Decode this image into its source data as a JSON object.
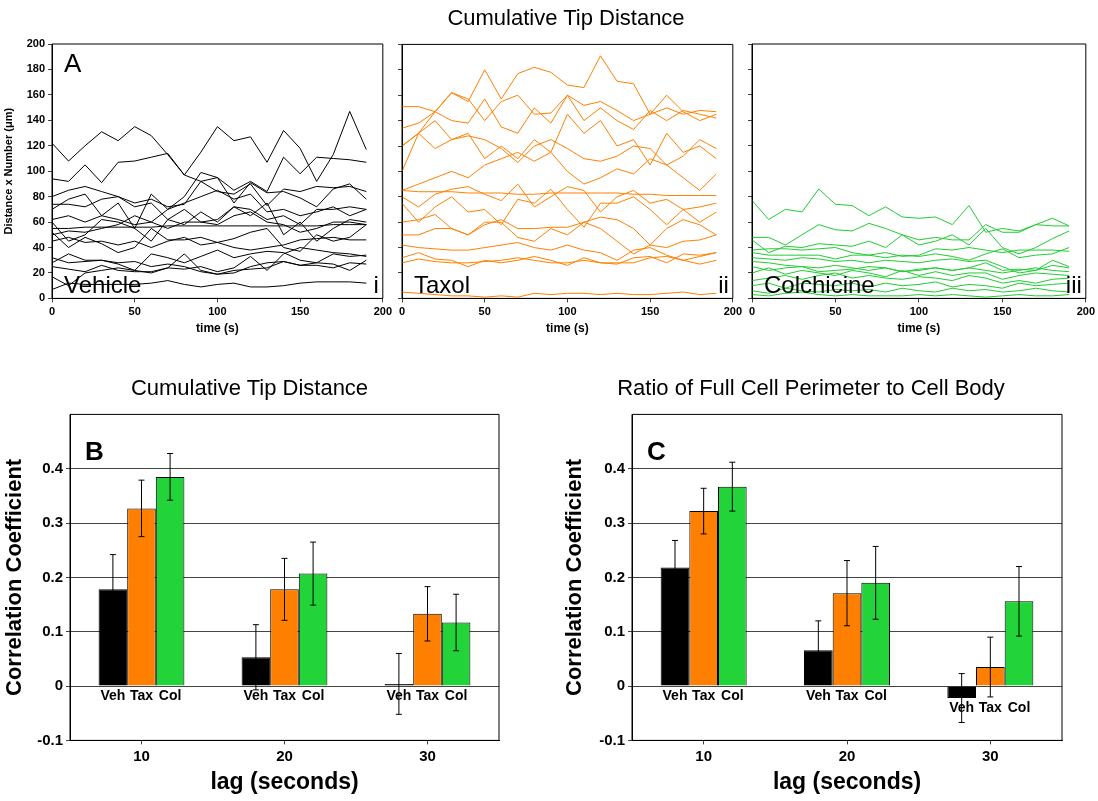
{
  "chart_data": [
    {
      "type": "line",
      "xlabel": "time (s)",
      "ylabel": "Distance x Number (μm)",
      "color": "#000000",
      "x": [
        0,
        10,
        20,
        30,
        40,
        50,
        60,
        70,
        80,
        90,
        100,
        110,
        120,
        130,
        140,
        150,
        160,
        170,
        180,
        190
      ],
      "xlim": [
        0,
        200
      ],
      "xticks": [
        0,
        50,
        100,
        150,
        200
      ],
      "ylim": [
        0,
        200
      ],
      "yticks": [
        0,
        20,
        40,
        60,
        80,
        100,
        120,
        140,
        160,
        180,
        200
      ],
      "annotations": [
        "A",
        "Vehicle",
        "i"
      ],
      "series": [
        {
          "values": [
            122,
            108,
            120,
            131,
            124,
            135,
            128,
            113,
            97,
            115,
            135,
            124,
            127,
            107,
            132,
            118,
            92,
            113,
            147,
            117
          ]
        },
        {
          "values": [
            94,
            92,
            105,
            91,
            107,
            108,
            111,
            114,
            97,
            92,
            95,
            85,
            92,
            84,
            111,
            98,
            111,
            110,
            109,
            107
          ]
        },
        {
          "values": [
            55,
            55,
            56,
            56,
            56,
            56,
            56,
            57,
            57,
            57,
            57,
            57,
            57,
            57,
            57,
            57,
            57,
            58,
            58,
            58
          ]
        },
        {
          "values": [
            7,
            12,
            11,
            11,
            11,
            11,
            12,
            14,
            11,
            9,
            11,
            12,
            9,
            9,
            10,
            12,
            13,
            13,
            13,
            12
          ]
        },
        {
          "values": [
            25,
            23,
            21,
            26,
            22,
            21,
            21,
            24,
            35,
            22,
            19,
            22,
            23,
            24,
            29,
            26,
            28,
            27,
            22,
            30
          ]
        },
        {
          "values": [
            32,
            28,
            29,
            30,
            27,
            22,
            20,
            24,
            23,
            25,
            21,
            24,
            33,
            22,
            35,
            40,
            38,
            36,
            35,
            33
          ]
        },
        {
          "values": [
            80,
            85,
            88,
            84,
            80,
            75,
            78,
            72,
            74,
            92,
            84,
            82,
            90,
            73,
            86,
            84,
            88,
            87,
            88,
            84
          ]
        },
        {
          "values": [
            70,
            78,
            82,
            65,
            75,
            55,
            82,
            70,
            80,
            99,
            95,
            75,
            91,
            83,
            84,
            79,
            72,
            86,
            90,
            78
          ]
        },
        {
          "values": [
            60,
            45,
            50,
            62,
            60,
            55,
            45,
            62,
            70,
            60,
            62,
            72,
            65,
            75,
            50,
            60,
            45,
            55,
            62,
            60
          ]
        },
        {
          "values": [
            52,
            40,
            48,
            43,
            36,
            40,
            55,
            46,
            46,
            48,
            44,
            47,
            52,
            55,
            40,
            37,
            50,
            45,
            48,
            58
          ]
        },
        {
          "values": [
            74,
            74,
            72,
            78,
            80,
            72,
            75,
            62,
            58,
            68,
            60,
            72,
            70,
            62,
            65,
            58,
            70,
            70,
            72,
            70
          ]
        },
        {
          "values": [
            45,
            48,
            44,
            45,
            42,
            45,
            40,
            45,
            48,
            42,
            44,
            40,
            38,
            40,
            42,
            46,
            47,
            48,
            46,
            46
          ]
        },
        {
          "values": [
            62,
            65,
            60,
            65,
            62,
            58,
            60,
            55,
            60,
            60,
            58,
            65,
            68,
            60,
            58,
            52,
            55,
            60,
            60,
            58
          ]
        },
        {
          "values": [
            28,
            35,
            30,
            30,
            28,
            29,
            25,
            27,
            25,
            21,
            19,
            20,
            25,
            28,
            29,
            26,
            26,
            24,
            28,
            27
          ]
        },
        {
          "values": [
            17,
            10,
            20,
            22,
            24,
            22,
            35,
            32,
            28,
            33,
            38,
            32,
            35,
            37,
            36,
            30,
            28,
            35,
            33,
            34
          ]
        },
        {
          "values": [
            50,
            53,
            52,
            55,
            58,
            65,
            60,
            70,
            75,
            80,
            85,
            78,
            82,
            68,
            70,
            65,
            68,
            72,
            65,
            70
          ]
        }
      ]
    },
    {
      "type": "line",
      "title": "Cumulative Tip Distance",
      "xlabel": "time (s)",
      "tick_labels": "x",
      "color": "#ff8000",
      "x": [
        0,
        10,
        20,
        30,
        40,
        50,
        60,
        70,
        80,
        90,
        100,
        110,
        120,
        130,
        140,
        150,
        160,
        170,
        180,
        190
      ],
      "xlim": [
        0,
        200
      ],
      "xticks": [
        0,
        50,
        100,
        150,
        200
      ],
      "ylim": [
        0,
        200
      ],
      "yticks": [
        0,
        20,
        40,
        60,
        80,
        100,
        120,
        140,
        160,
        180,
        200
      ],
      "annotations": [
        "Taxol",
        "ii"
      ],
      "series": [
        {
          "values": [
            134,
            138,
            147,
            162,
            155,
            180,
            157,
            177,
            182,
            178,
            168,
            166,
            191,
            171,
            169,
            145,
            160,
            147,
            140,
            145
          ]
        },
        {
          "values": [
            151,
            151,
            147,
            140,
            138,
            157,
            135,
            130,
            150,
            138,
            160,
            152,
            155,
            148,
            140,
            145,
            150,
            145,
            148,
            147
          ]
        },
        {
          "values": [
            120,
            130,
            147,
            162,
            157,
            140,
            155,
            160,
            145,
            146,
            160,
            140,
            150,
            140,
            133,
            148,
            140,
            148,
            145,
            142
          ]
        },
        {
          "values": [
            120,
            130,
            140,
            125,
            130,
            110,
            120,
            110,
            125,
            115,
            145,
            130,
            140,
            120,
            125,
            105,
            130,
            115,
            120,
            110
          ]
        },
        {
          "values": [
            100,
            130,
            118,
            125,
            128,
            125,
            118,
            107,
            120,
            125,
            118,
            110,
            108,
            112,
            120,
            118,
            105,
            112,
            125,
            118
          ]
        },
        {
          "values": [
            85,
            90,
            95,
            100,
            95,
            105,
            110,
            115,
            108,
            115,
            100,
            90,
            95,
            102,
            98,
            110,
            105,
            95,
            85,
            98
          ]
        },
        {
          "values": [
            85,
            84,
            84,
            84,
            83,
            83,
            83,
            82,
            82,
            83,
            83,
            83,
            83,
            83,
            82,
            82,
            81,
            81,
            81,
            81
          ]
        },
        {
          "values": [
            80,
            72,
            82,
            86,
            88,
            82,
            77,
            90,
            72,
            80,
            88,
            85,
            68,
            80,
            85,
            75,
            78,
            70,
            72,
            75
          ]
        },
        {
          "values": [
            75,
            60,
            72,
            80,
            68,
            70,
            58,
            78,
            75,
            86,
            70,
            56,
            75,
            75,
            80,
            70,
            58,
            70,
            60,
            68
          ]
        },
        {
          "values": [
            60,
            62,
            66,
            55,
            50,
            60,
            60,
            48,
            45,
            55,
            50,
            60,
            55,
            45,
            35,
            42,
            55,
            62,
            58,
            50
          ]
        },
        {
          "values": [
            50,
            50,
            55,
            55,
            50,
            58,
            62,
            55,
            55,
            56,
            56,
            60,
            64,
            62,
            55,
            42,
            40,
            45,
            46,
            50
          ]
        },
        {
          "values": [
            28,
            31,
            29,
            28,
            28,
            29,
            30,
            32,
            30,
            28,
            28,
            30,
            28,
            28,
            28,
            32,
            33,
            30,
            27,
            30
          ]
        },
        {
          "values": [
            32,
            36,
            31,
            30,
            25,
            30,
            28,
            30,
            33,
            30,
            26,
            32,
            28,
            27,
            32,
            33,
            28,
            35,
            34,
            36
          ]
        },
        {
          "values": [
            5,
            4,
            3,
            2,
            2,
            1,
            2,
            1,
            4,
            3,
            4,
            4,
            3,
            4,
            3,
            3,
            4,
            5,
            3,
            4
          ]
        },
        {
          "values": [
            42,
            40,
            39,
            38,
            38,
            40,
            42,
            44,
            40,
            38,
            42,
            38,
            36,
            30,
            38,
            40,
            34,
            30,
            33,
            36
          ]
        }
      ]
    },
    {
      "type": "line",
      "xlabel": "time (s)",
      "tick_labels": "x",
      "color": "#22cc33",
      "x": [
        0,
        10,
        20,
        30,
        40,
        50,
        60,
        70,
        80,
        90,
        100,
        110,
        120,
        130,
        140,
        150,
        160,
        170,
        180,
        190
      ],
      "xlim": [
        0,
        200
      ],
      "xticks": [
        0,
        50,
        100,
        150,
        200
      ],
      "ylim": [
        0,
        200
      ],
      "yticks": [
        0,
        20,
        40,
        60,
        80,
        100,
        120,
        140,
        160,
        180,
        200
      ],
      "annotations": [
        "Colchicine",
        "iii"
      ],
      "series": [
        {
          "values": [
            77,
            62,
            70,
            68,
            86,
            74,
            73,
            65,
            72,
            64,
            63,
            64,
            58,
            73,
            52,
            55,
            53,
            58,
            63,
            57
          ]
        },
        {
          "values": [
            48,
            48,
            42,
            50,
            58,
            54,
            53,
            59,
            55,
            50,
            46,
            48,
            46,
            46,
            58,
            52,
            52,
            58,
            57,
            57
          ]
        },
        {
          "values": [
            46,
            36,
            41,
            40,
            43,
            42,
            41,
            45,
            40,
            50,
            42,
            45,
            50,
            42,
            55,
            40,
            35,
            40,
            47,
            53
          ]
        },
        {
          "values": [
            38,
            39,
            39,
            38,
            39,
            40,
            36,
            34,
            36,
            33,
            34,
            39,
            38,
            40,
            38,
            36,
            38,
            38,
            38,
            37
          ]
        },
        {
          "values": [
            36,
            34,
            34,
            34,
            34,
            31,
            34,
            34,
            32,
            34,
            33,
            35,
            33,
            30,
            35,
            39,
            32,
            34,
            35,
            40
          ]
        },
        {
          "values": [
            32,
            31,
            30,
            32,
            31,
            29,
            30,
            28,
            30,
            29,
            28,
            30,
            31,
            29,
            30,
            25,
            20,
            22,
            30,
            25
          ]
        },
        {
          "values": [
            29,
            28,
            26,
            25,
            24,
            26,
            24,
            22,
            24,
            21,
            23,
            24,
            22,
            24,
            28,
            22,
            23,
            22,
            26,
            24
          ]
        },
        {
          "values": [
            25,
            22,
            24,
            25,
            21,
            22,
            23,
            25,
            24,
            21,
            22,
            24,
            22,
            24,
            22,
            20,
            22,
            24,
            22,
            21
          ]
        },
        {
          "values": [
            20,
            24,
            19,
            22,
            20,
            18,
            22,
            20,
            17,
            22,
            18,
            21,
            18,
            20,
            20,
            15,
            18,
            20,
            19,
            18
          ]
        },
        {
          "values": [
            14,
            16,
            18,
            15,
            18,
            20,
            16,
            18,
            16,
            15,
            17,
            16,
            14,
            18,
            16,
            12,
            14,
            12,
            15,
            16
          ]
        },
        {
          "values": [
            10,
            12,
            8,
            12,
            11,
            10,
            12,
            9,
            12,
            10,
            11,
            13,
            9,
            11,
            10,
            8,
            12,
            10,
            11,
            12
          ]
        },
        {
          "values": [
            6,
            4,
            8,
            6,
            5,
            7,
            6,
            7,
            5,
            8,
            6,
            5,
            8,
            6,
            7,
            5,
            6,
            8,
            6,
            5
          ]
        },
        {
          "values": [
            3,
            2,
            4,
            5,
            3,
            2,
            3,
            2,
            2,
            2,
            3,
            2,
            3,
            2,
            1,
            2,
            3,
            2,
            2,
            3
          ]
        }
      ]
    },
    {
      "type": "bar",
      "title": "Cumulative Tip Distance",
      "xlabel": "lag (seconds)",
      "ylabel": "Correlation Coefficient",
      "categories": [
        "10",
        "20",
        "30"
      ],
      "ylim": [
        -0.1,
        0.5
      ],
      "yticks": [
        -0.1,
        0,
        0.1,
        0.2,
        0.3,
        0.4
      ],
      "grid": "y",
      "annotations": [
        "B",
        "Veh",
        "Tax",
        "Col",
        "Veh",
        "Tax",
        "Col",
        "Veh",
        "Tax",
        "Col"
      ],
      "series": [
        {
          "color": "#000000",
          "values": [
            0.178,
            0.053,
            0.004
          ],
          "errors": [
            0.064,
            0.06,
            0.056
          ]
        },
        {
          "color": "#ff8000",
          "values": [
            0.327,
            0.178,
            0.133
          ],
          "errors": [
            0.052,
            0.057,
            0.05
          ]
        },
        {
          "color": "#22d33a",
          "values": [
            0.385,
            0.207,
            0.117
          ],
          "errors": [
            0.043,
            0.058,
            0.052
          ]
        }
      ]
    },
    {
      "type": "bar",
      "title": "Ratio of Full Cell Perimeter to Cell Body",
      "xlabel": "lag (seconds)",
      "ylabel": "Correlation Coefficient",
      "categories": [
        "10",
        "20",
        "30"
      ],
      "ylim": [
        -0.1,
        0.5
      ],
      "yticks": [
        -0.1,
        0,
        0.1,
        0.2,
        0.3,
        0.4
      ],
      "grid": "y",
      "annotations": [
        "C",
        "Veh",
        "Tax",
        "Col",
        "Veh",
        "Tax",
        "Col",
        "Veh",
        "Tax",
        "Col"
      ],
      "series": [
        {
          "color": "#000000",
          "values": [
            0.218,
            0.066,
            -0.022
          ],
          "errors": [
            0.05,
            0.054,
            0.045
          ]
        },
        {
          "color": "#ff8000",
          "values": [
            0.322,
            0.171,
            0.035
          ],
          "errors": [
            0.042,
            0.06,
            0.055
          ]
        },
        {
          "color": "#22d33a",
          "values": [
            0.367,
            0.19,
            0.156
          ],
          "errors": [
            0.045,
            0.067,
            0.064
          ]
        }
      ]
    }
  ]
}
